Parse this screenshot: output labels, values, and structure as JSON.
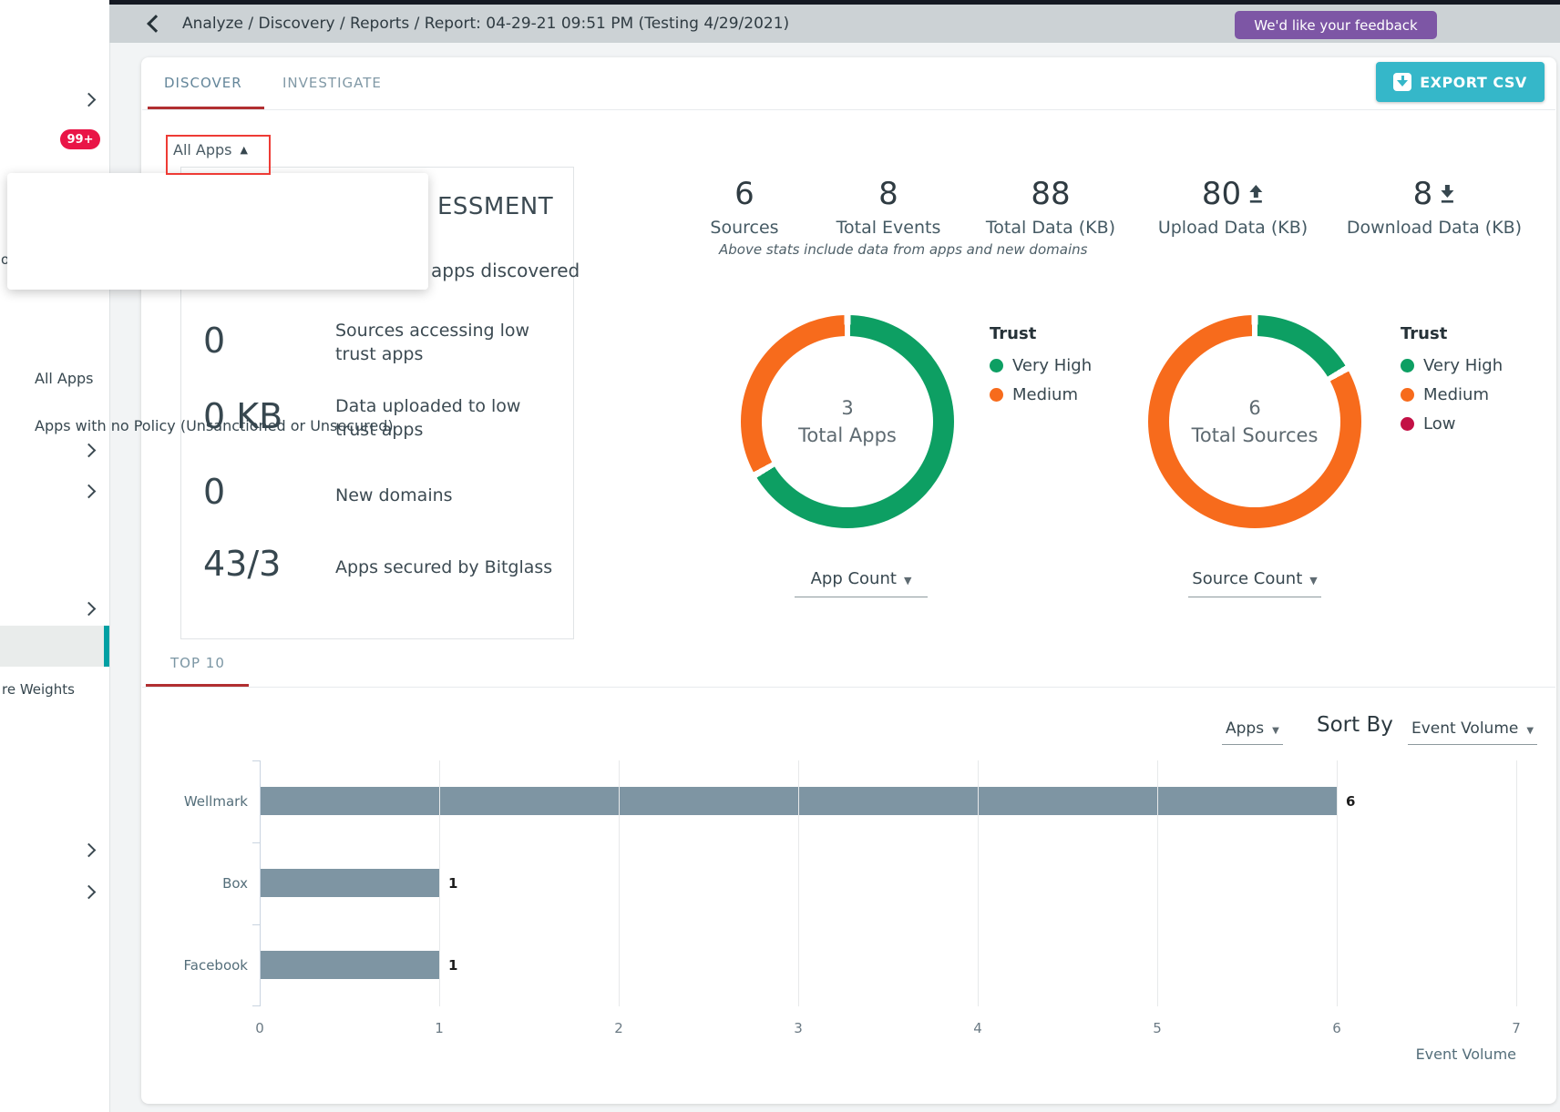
{
  "topbar": {
    "breadcrumb": "Analyze / Discovery / Reports / Report: 04-29-21 09:51 PM (Testing 4/29/2021)",
    "feedback_button": "We'd like your feedback"
  },
  "tabs": {
    "discover": "DISCOVER",
    "investigate": "INVESTIGATE"
  },
  "export_button": "EXPORT CSV",
  "apps_filter": {
    "value": "All Apps",
    "options": [
      "All Apps",
      "Apps with no Policy (Unsanctioned or Unsecured)"
    ]
  },
  "assessment": {
    "title_visible": "ESSMENT",
    "subtitle_visible": "apps discovered",
    "stats": [
      {
        "value": "0",
        "label": "Sources accessing low trust apps"
      },
      {
        "value": "0 KB",
        "label": "Data uploaded to low trust apps"
      },
      {
        "value": "0",
        "label": "New domains"
      },
      {
        "value": "43/3",
        "label": "Apps secured by Bitglass"
      }
    ]
  },
  "summary_stats": {
    "items": [
      {
        "value": "6",
        "label": "Sources"
      },
      {
        "value": "8",
        "label": "Total Events"
      },
      {
        "value": "88",
        "label": "Total Data (KB)"
      },
      {
        "value": "80",
        "label": "Upload Data (KB)",
        "icon": "upload-icon"
      },
      {
        "value": "8",
        "label": "Download Data (KB)",
        "icon": "download-icon"
      }
    ],
    "note": "Above stats include data from apps and new domains"
  },
  "donuts": [
    {
      "center_value": "3",
      "center_label": "Total Apps",
      "legend_title": "Trust",
      "dropdown": "App Count",
      "slices": [
        {
          "label": "Very High",
          "value": 2,
          "color": "#0d9f63"
        },
        {
          "label": "Medium",
          "value": 1,
          "color": "#f76b1c"
        }
      ]
    },
    {
      "center_value": "6",
      "center_label": "Total Sources",
      "legend_title": "Trust",
      "dropdown": "Source Count",
      "slices": [
        {
          "label": "Very High",
          "value": 1,
          "color": "#0d9f63"
        },
        {
          "label": "Medium",
          "value": 5,
          "color": "#f76b1c"
        },
        {
          "label": "Low",
          "value": 0,
          "color": "#c31045"
        }
      ]
    }
  ],
  "top10": {
    "tab": "TOP 10",
    "series_select": "Apps",
    "sort_by_label": "Sort By",
    "sort_select": "Event Volume",
    "chart_data": {
      "type": "bar",
      "orientation": "horizontal",
      "categories": [
        "Wellmark",
        "Box",
        "Facebook"
      ],
      "values": [
        6,
        1,
        1
      ],
      "xticks": [
        0,
        1,
        2,
        3,
        4,
        5,
        6,
        7
      ],
      "xlim": [
        0,
        7
      ],
      "xlabel": "Event Volume",
      "bar_color": "#7e95a3",
      "grid": true
    }
  },
  "sidebar": {
    "badge": "99+",
    "active_item_fragment": "re Weights",
    "clipped_fragment": "o"
  },
  "colors": {
    "accent_red": "#b12f31",
    "highlight_red": "#ee3b35",
    "export_teal": "#35b7c9",
    "feedback_purple": "#7d56a5",
    "badge_red": "#e91547",
    "active_teal": "#00a0a3"
  }
}
